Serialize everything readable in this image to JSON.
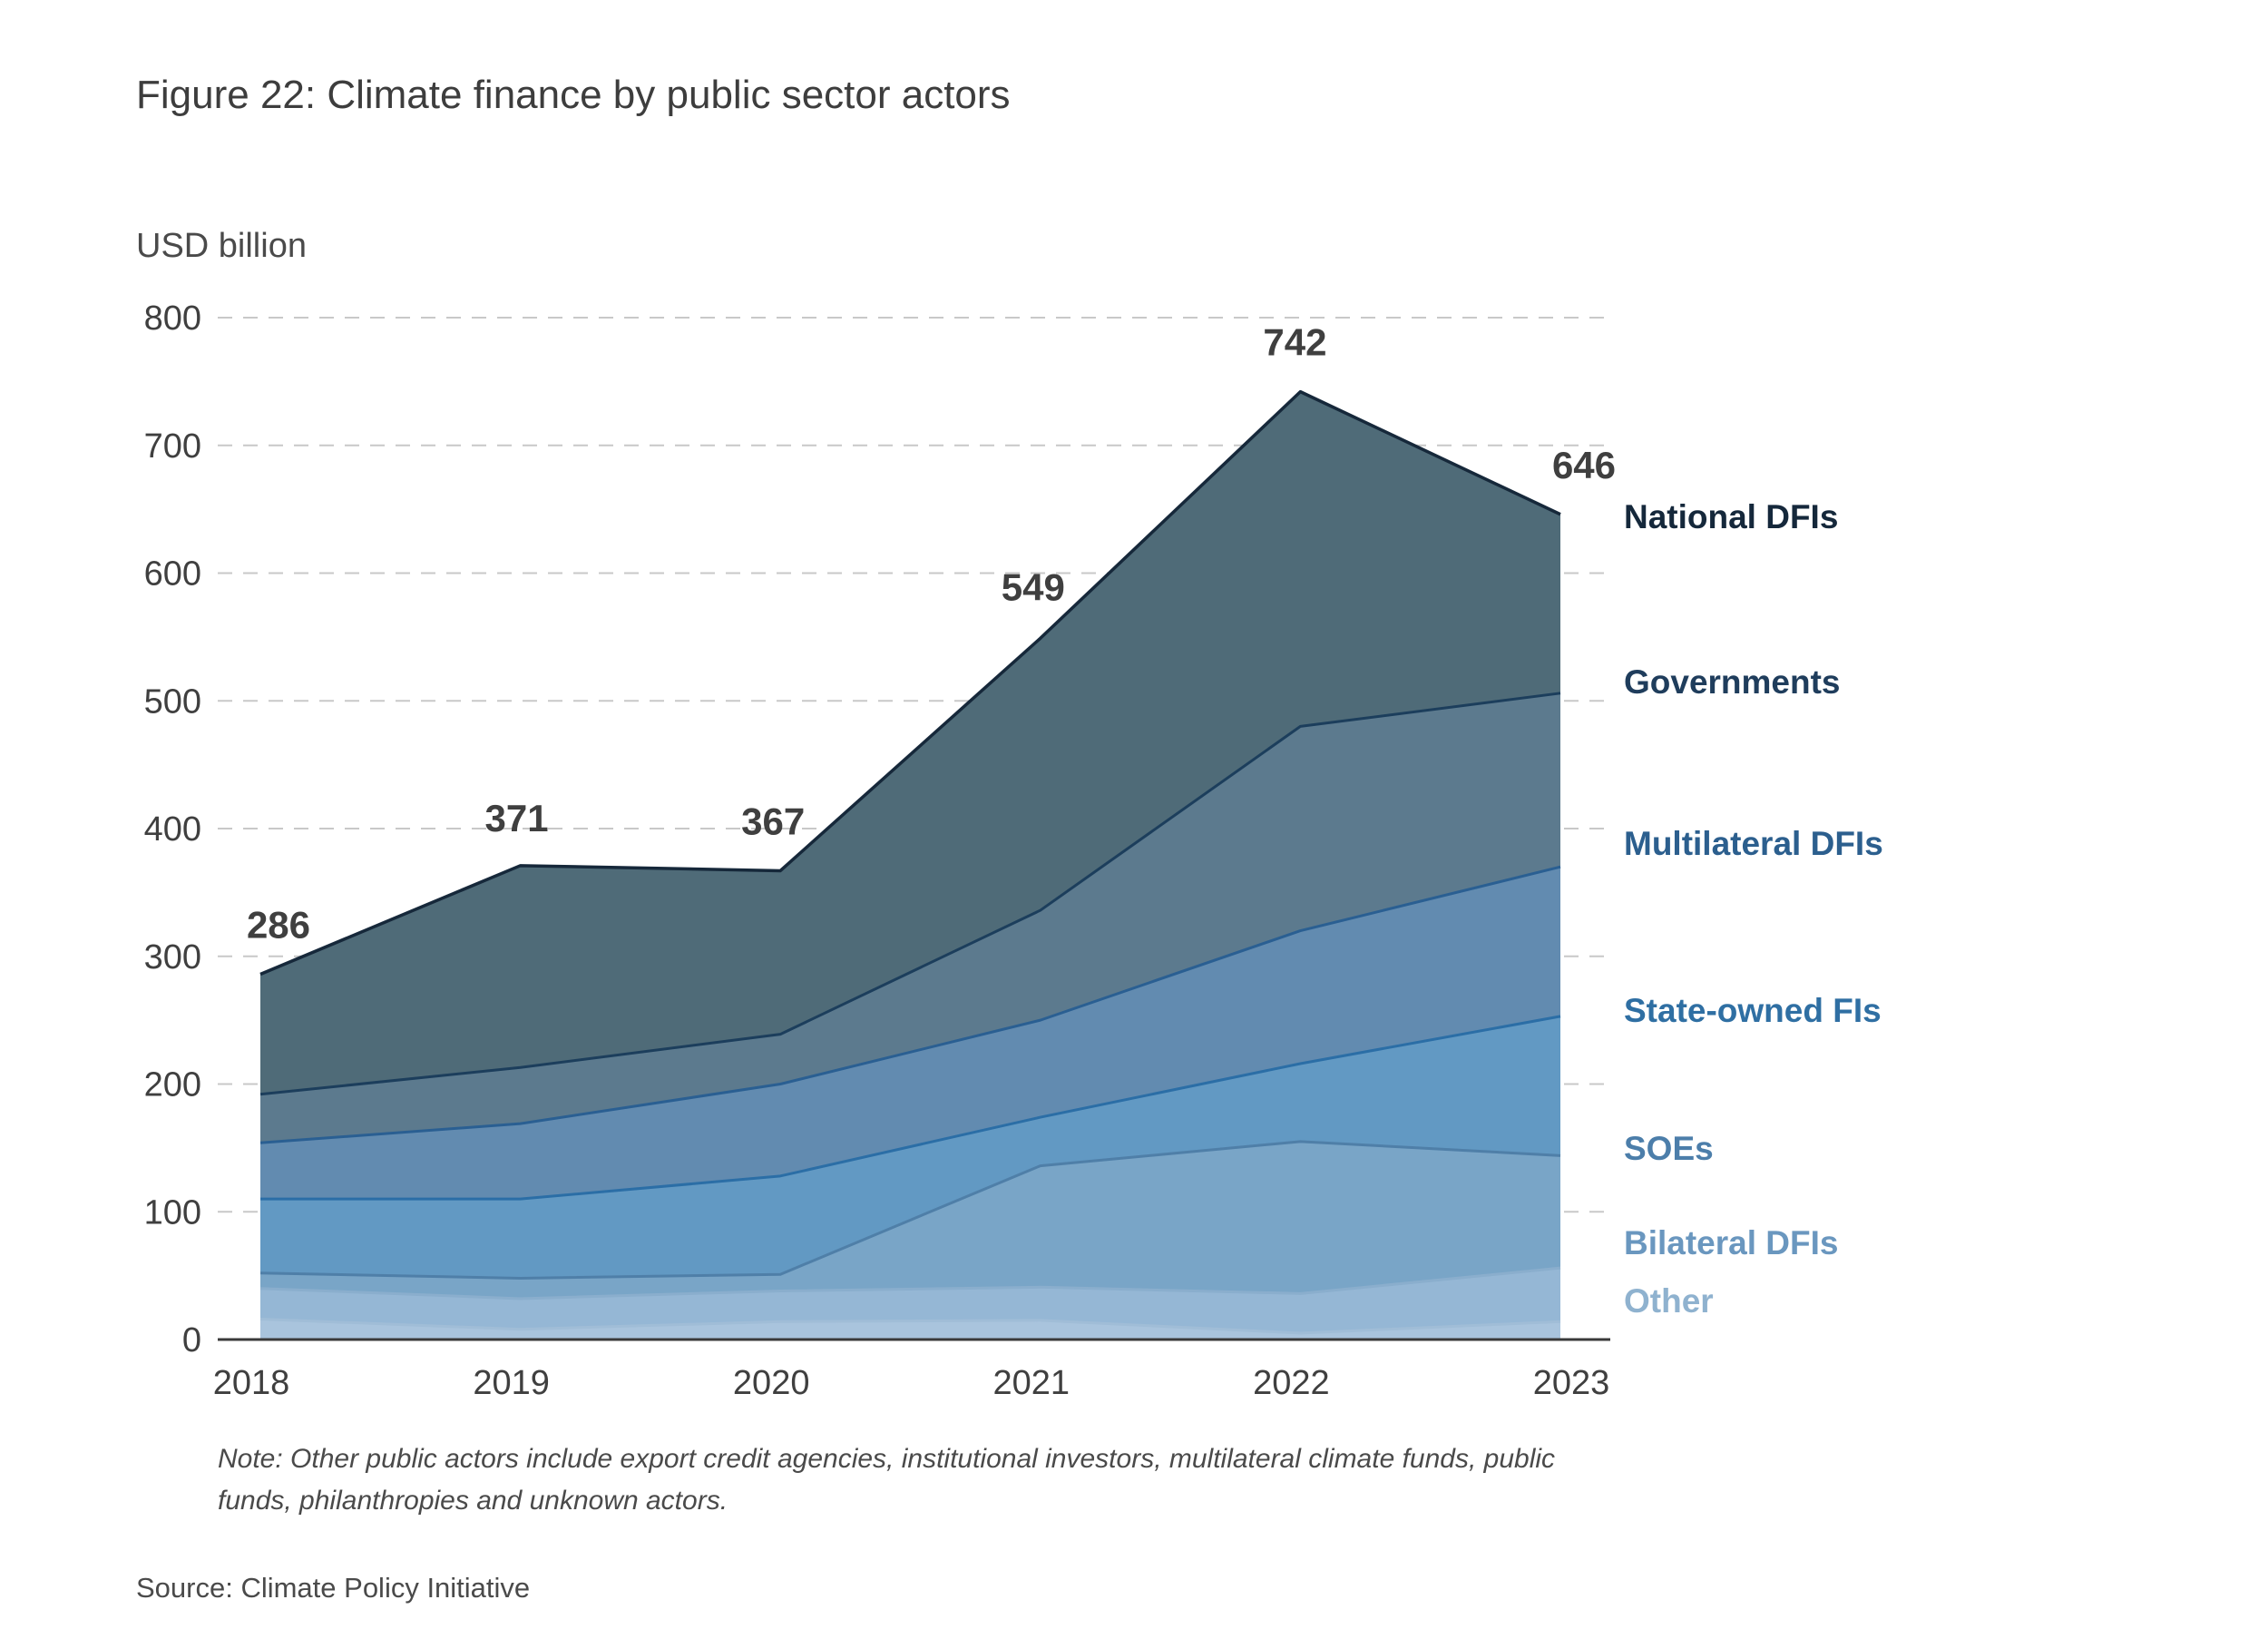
{
  "title": "Figure 22: Climate finance by public sector actors",
  "note": "Note: Other public actors include export credit agencies, institutional investors, multilateral climate funds, public funds, philanthropies and unknown actors.",
  "source": "Source: Climate Policy Initiative",
  "chart_data": {
    "type": "area",
    "stacked": true,
    "ylabel": "USD billion",
    "ylim": [
      0,
      800
    ],
    "yticks": [
      0,
      100,
      200,
      300,
      400,
      500,
      600,
      700,
      800
    ],
    "grid": true,
    "legend": "right",
    "x": [
      "2018",
      "2019",
      "2020",
      "2021",
      "2022",
      "2023"
    ],
    "series": [
      {
        "name": "Other",
        "color": "#a9c4dd",
        "text_color": "#8fb2cf",
        "cumulative": [
          16,
          8,
          14,
          15,
          5,
          14
        ]
      },
      {
        "name": "Bilateral DFIs",
        "color": "#95b7d5",
        "text_color": "#6a97bf",
        "cumulative": [
          40,
          32,
          38,
          41,
          36,
          56
        ]
      },
      {
        "name": "SOEs",
        "color": "#79a5c7",
        "text_color": "#4c7eaa",
        "cumulative": [
          52,
          48,
          51,
          136,
          155,
          144
        ]
      },
      {
        "name": "State-owned FIs",
        "color": "#6299c3",
        "text_color": "#2f6fa3",
        "cumulative": [
          110,
          110,
          128,
          174,
          216,
          253
        ]
      },
      {
        "name": "Multilateral DFIs",
        "color": "#628bb0",
        "text_color": "#2c5f8e",
        "cumulative": [
          154,
          169,
          200,
          250,
          320,
          370
        ]
      },
      {
        "name": "Governments",
        "color": "#5c7a8e",
        "text_color": "#1f3d5c",
        "cumulative": [
          192,
          213,
          239,
          336,
          480,
          506
        ]
      },
      {
        "name": "National DFIs",
        "color": "#4f6b78",
        "text_color": "#15283b",
        "cumulative": [
          286,
          371,
          367,
          549,
          742,
          646
        ]
      }
    ],
    "totals": [
      "286",
      "371",
      "367",
      "549",
      "742",
      "646"
    ]
  }
}
